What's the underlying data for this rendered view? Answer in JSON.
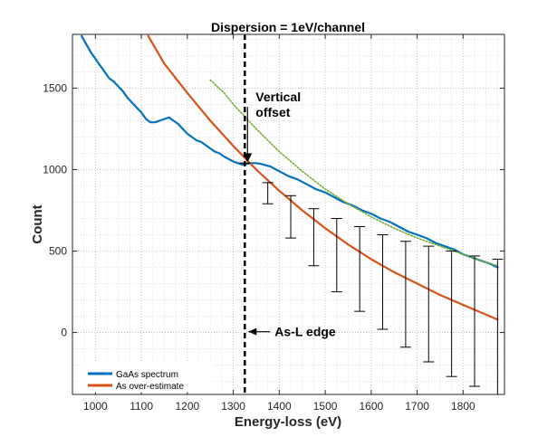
{
  "chart_data": {
    "type": "line",
    "title": "Dispersion = 1eV/channel",
    "xlabel": "Energy-loss (eV)",
    "ylabel": "Count",
    "xlim": [
      950,
      1890
    ],
    "ylim": [
      -380,
      1830
    ],
    "xticks": [
      1000,
      1100,
      1200,
      1300,
      1400,
      1500,
      1600,
      1700,
      1800
    ],
    "yticks": [
      0,
      500,
      1000,
      1500
    ],
    "grid": "major and minor dotted",
    "legend_position": "bottom-left",
    "series": [
      {
        "name": "GaAs spectrum",
        "color": "#0072BD",
        "x": [
          970,
          980,
          990,
          1000,
          1010,
          1020,
          1030,
          1040,
          1050,
          1060,
          1070,
          1080,
          1090,
          1100,
          1110,
          1120,
          1130,
          1140,
          1150,
          1160,
          1170,
          1180,
          1190,
          1200,
          1210,
          1220,
          1230,
          1240,
          1250,
          1260,
          1270,
          1280,
          1290,
          1300,
          1310,
          1320,
          1330,
          1340,
          1350,
          1360,
          1380,
          1400,
          1420,
          1440,
          1460,
          1480,
          1500,
          1520,
          1540,
          1560,
          1580,
          1600,
          1620,
          1640,
          1660,
          1680,
          1700,
          1720,
          1740,
          1760,
          1780,
          1800,
          1820,
          1840,
          1860,
          1875
        ],
        "y": [
          1820,
          1770,
          1720,
          1680,
          1640,
          1600,
          1560,
          1540,
          1510,
          1480,
          1440,
          1410,
          1380,
          1350,
          1310,
          1290,
          1290,
          1300,
          1310,
          1320,
          1300,
          1280,
          1250,
          1220,
          1200,
          1180,
          1170,
          1150,
          1130,
          1110,
          1100,
          1080,
          1065,
          1050,
          1040,
          1030,
          1035,
          1040,
          1040,
          1035,
          1020,
          990,
          960,
          940,
          910,
          880,
          860,
          830,
          800,
          780,
          750,
          730,
          700,
          680,
          650,
          620,
          600,
          580,
          550,
          530,
          510,
          480,
          460,
          440,
          420,
          400
        ]
      },
      {
        "name": "As over-estimate",
        "color": "#D95319",
        "x": [
          1115,
          1150,
          1200,
          1250,
          1300,
          1350,
          1400,
          1450,
          1500,
          1550,
          1600,
          1650,
          1700,
          1750,
          1800,
          1850,
          1875
        ],
        "y": [
          1820,
          1650,
          1470,
          1300,
          1145,
          1000,
          870,
          750,
          640,
          540,
          450,
          370,
          300,
          230,
          170,
          110,
          80
        ]
      },
      {
        "name": "",
        "color": "#77AC30",
        "style": "dotted",
        "x": [
          1250,
          1280,
          1300,
          1330,
          1350,
          1400,
          1450,
          1500,
          1550,
          1600,
          1650,
          1700,
          1750,
          1800,
          1850,
          1875
        ],
        "y": [
          1550,
          1470,
          1400,
          1310,
          1250,
          1110,
          990,
          880,
          790,
          710,
          640,
          580,
          530,
          480,
          430,
          410
        ]
      }
    ],
    "error_bars": {
      "x": [
        1325,
        1375,
        1425,
        1475,
        1525,
        1575,
        1625,
        1675,
        1725,
        1775,
        1825,
        1875
      ],
      "low": [
        1040,
        790,
        580,
        410,
        250,
        130,
        20,
        -90,
        -180,
        -270,
        -330,
        -380
      ],
      "high": [
        1040,
        920,
        840,
        760,
        700,
        650,
        600,
        560,
        530,
        500,
        470,
        450
      ]
    },
    "markers": {
      "edge_line_x": 1325
    },
    "annotations": {
      "vertical_offset": [
        "Vertical",
        "offset"
      ],
      "edge": "As-L edge"
    }
  }
}
